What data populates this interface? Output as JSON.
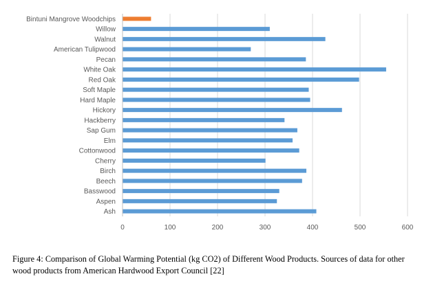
{
  "chart_data": {
    "type": "bar",
    "orientation": "horizontal",
    "categories": [
      "Bintuni Mangrove Woodchips",
      "Willow",
      "Walnut",
      "American Tulipwood",
      "Pecan",
      "White Oak",
      "Red Oak",
      "Soft Maple",
      "Hard Maple",
      "Hickory",
      "Hackberry",
      "Sap Gum",
      "Elm",
      "Cottonwood",
      "Cherry",
      "Birch",
      "Beech",
      "Basswood",
      "Aspen",
      "Ash"
    ],
    "values": [
      60,
      310,
      427,
      270,
      386,
      555,
      498,
      392,
      395,
      462,
      341,
      368,
      358,
      372,
      301,
      387,
      378,
      330,
      325,
      408
    ],
    "bar_colors": [
      "#ED7D31",
      "#5B9BD5",
      "#5B9BD5",
      "#5B9BD5",
      "#5B9BD5",
      "#5B9BD5",
      "#5B9BD5",
      "#5B9BD5",
      "#5B9BD5",
      "#5B9BD5",
      "#5B9BD5",
      "#5B9BD5",
      "#5B9BD5",
      "#5B9BD5",
      "#5B9BD5",
      "#5B9BD5",
      "#5B9BD5",
      "#5B9BD5",
      "#5B9BD5",
      "#5B9BD5"
    ],
    "xlim": [
      0,
      600
    ],
    "xticks": [
      0,
      100,
      200,
      300,
      400,
      500,
      600
    ],
    "xtick_labels": [
      "0",
      "100",
      "200",
      "300",
      "400",
      "500",
      "600"
    ],
    "grid": "vertical",
    "title": "",
    "xlabel": "",
    "ylabel": ""
  },
  "colors": {
    "highlight": "#ED7D31",
    "series": "#5B9BD5",
    "grid": "#D9D9D9",
    "axis": "#BFBFBF",
    "label_text": "#595959"
  },
  "caption": "Figure 4: Comparison of Global Warming Potential (kg CO2) of Different Wood Products. Sources of data for other wood products from American Hardwood Export Council [22]"
}
